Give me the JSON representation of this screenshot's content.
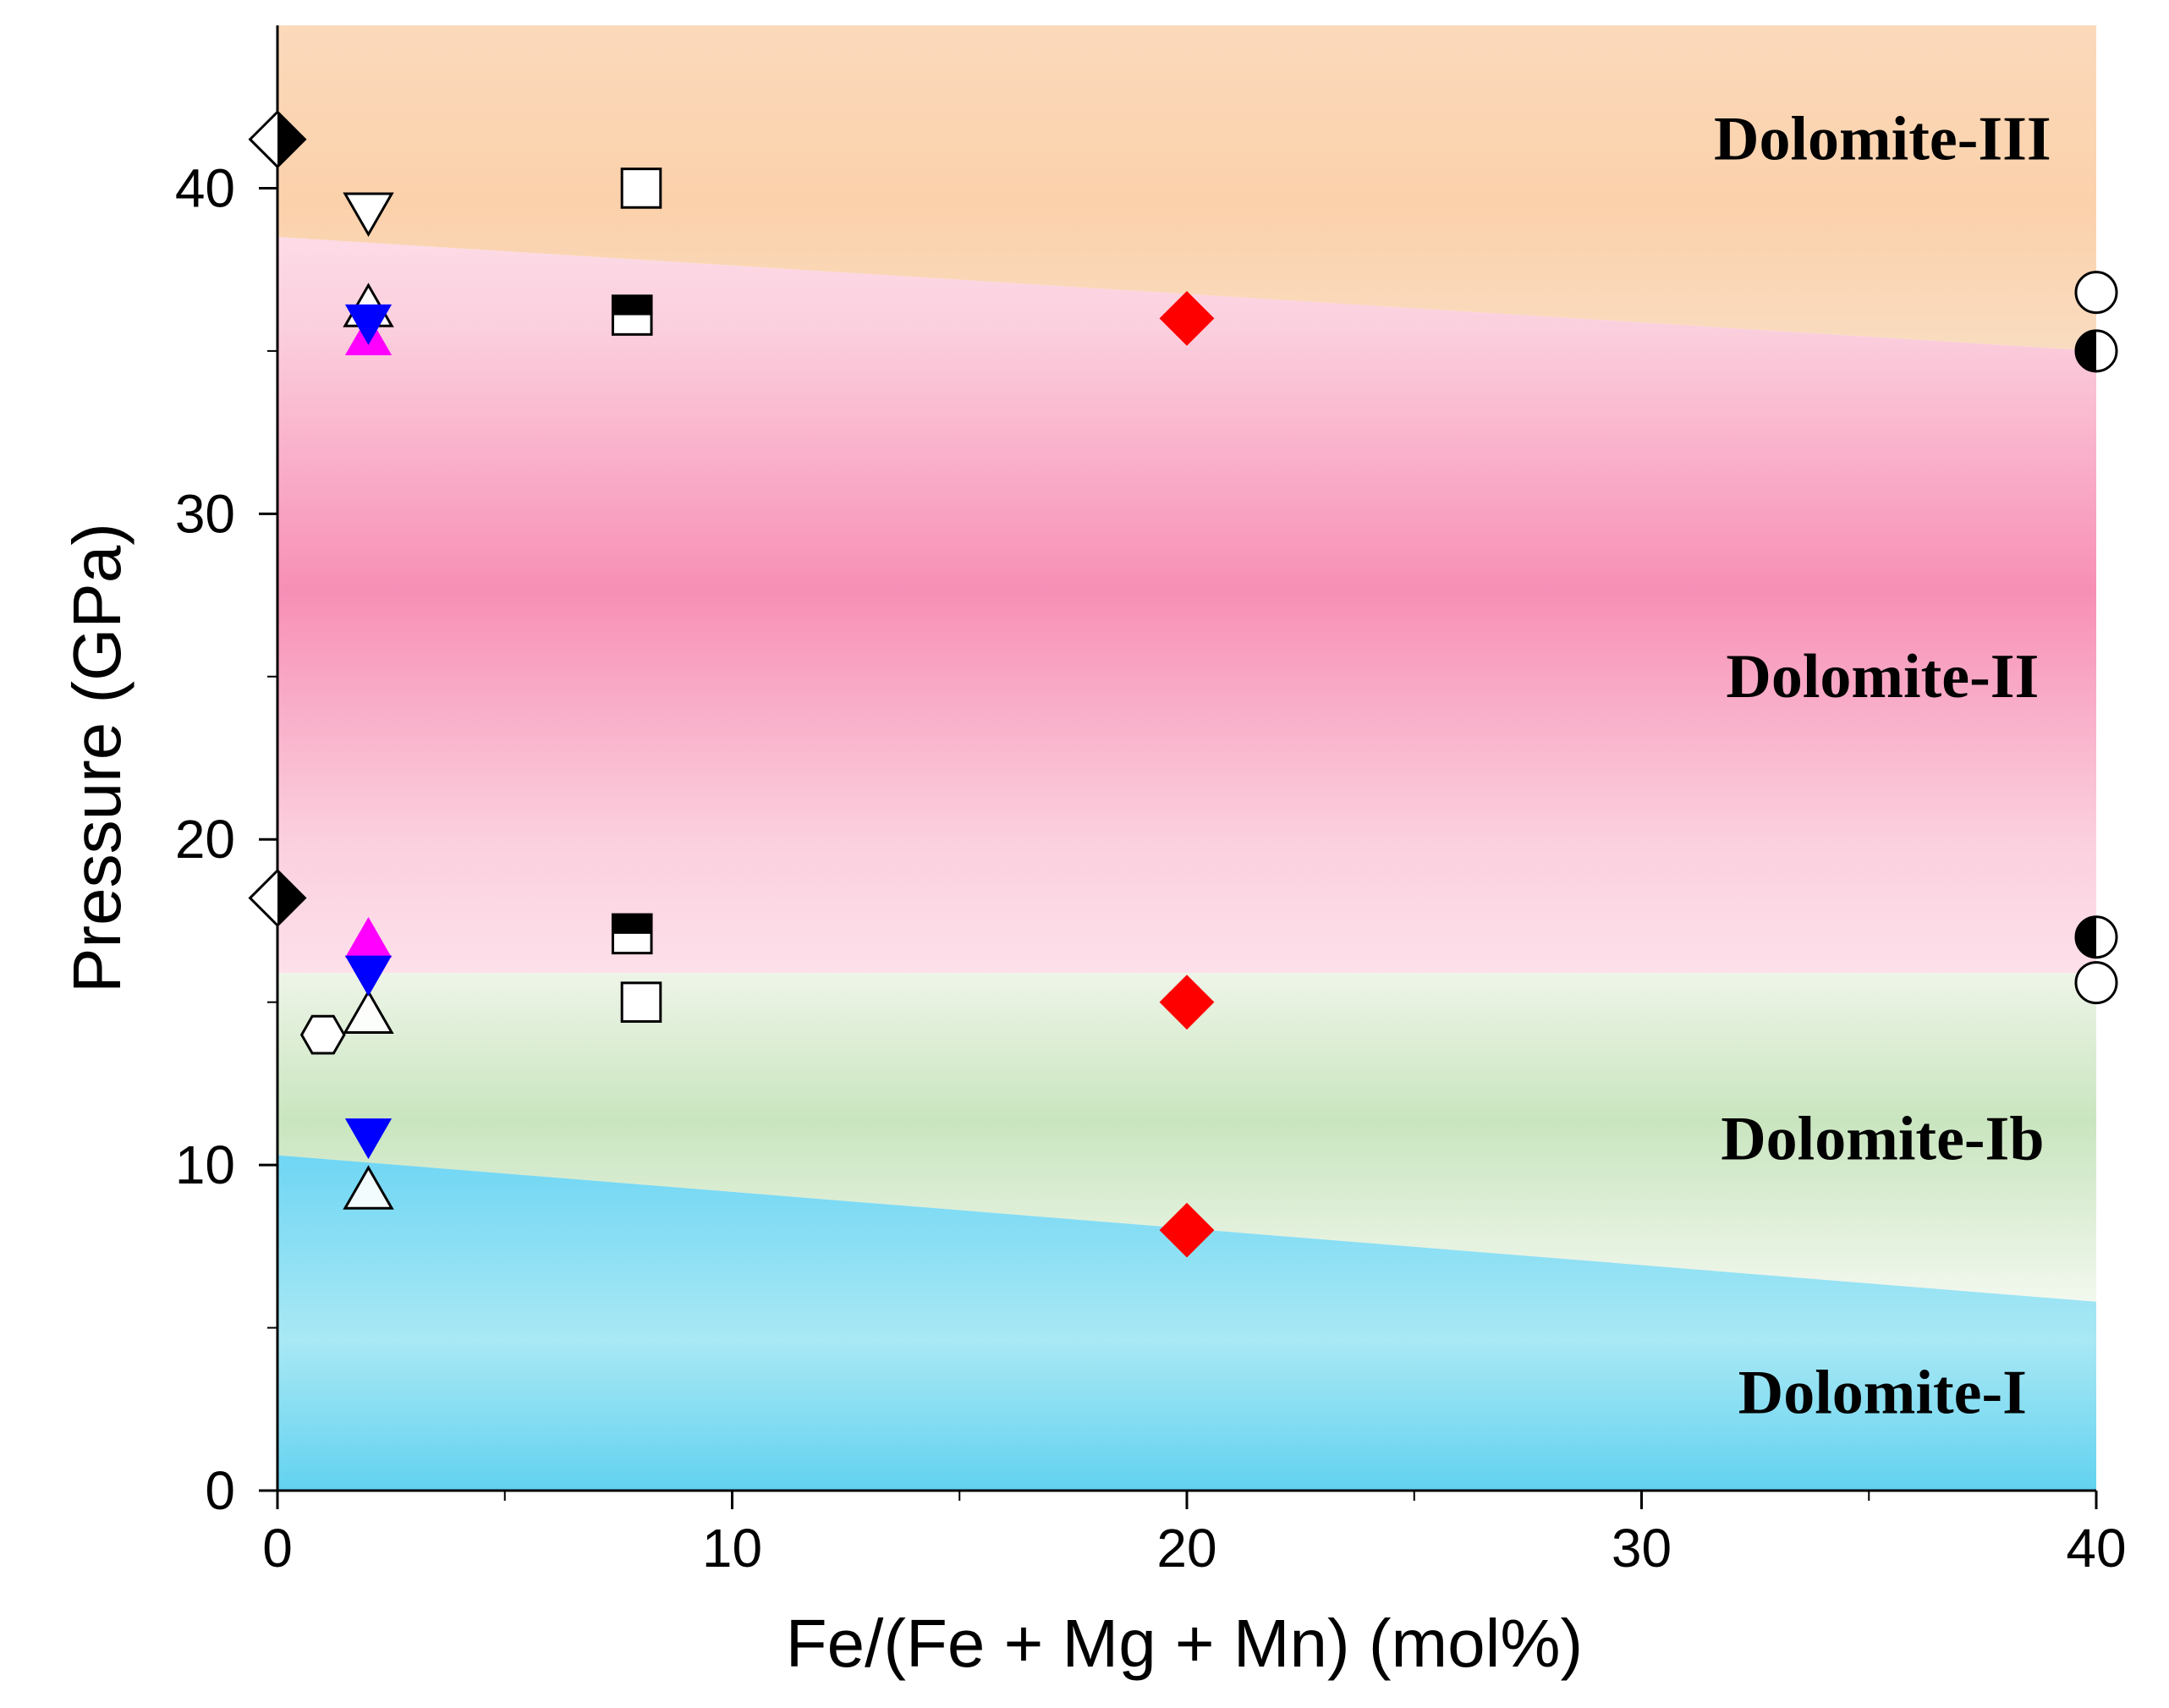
{
  "chart_data": {
    "type": "scatter",
    "title": "",
    "xlabel": "Fe/(Fe + Mg + Mn) (mol%)",
    "ylabel": "Pressure (GPa)",
    "xlim": [
      0,
      40
    ],
    "ylim": [
      0,
      45
    ],
    "x_ticks": [
      0,
      10,
      20,
      30,
      40
    ],
    "y_ticks": [
      0,
      10,
      20,
      30,
      40
    ],
    "x_minor_ticks": [
      5,
      15,
      25,
      35
    ],
    "y_minor_ticks": [
      5,
      15,
      25,
      35
    ],
    "grid": false,
    "phase_regions": [
      {
        "name": "Dolomite-I",
        "label": "Dolomite-I",
        "color": "#6fd8f2",
        "label_at": {
          "x": 35.3,
          "y": 3
        }
      },
      {
        "name": "Dolomite-Ib",
        "label": "Dolomite-Ib",
        "color": "#cbe6c2",
        "label_at": {
          "x": 35.3,
          "y": 10.8
        }
      },
      {
        "name": "Dolomite-II",
        "label": "Dolomite-II",
        "color": "#f795b8",
        "label_at": {
          "x": 35.3,
          "y": 25
        }
      },
      {
        "name": "Dolomite-III",
        "label": "Dolomite-III",
        "color": "#fbd3ad",
        "label_at": {
          "x": 35.3,
          "y": 41.5
        }
      }
    ],
    "boundaries": [
      {
        "name": "I-Ib",
        "points": [
          [
            0,
            10.3
          ],
          [
            40,
            5.8
          ]
        ]
      },
      {
        "name": "Ib-II",
        "points": [
          [
            0,
            15.9
          ],
          [
            40,
            15.9
          ]
        ]
      },
      {
        "name": "II-III",
        "points": [
          [
            0,
            38.5
          ],
          [
            40,
            35.0
          ]
        ]
      }
    ],
    "series": [
      {
        "name": "diamond-half-black",
        "marker": "diamond-half",
        "color": "#000000",
        "points": [
          [
            0,
            41.5
          ],
          [
            0,
            18.2
          ]
        ]
      },
      {
        "name": "triangle-down-open",
        "marker": "triangle-down-open",
        "color": "#000000",
        "points": [
          [
            2,
            39.3
          ]
        ]
      },
      {
        "name": "triangle-up-open",
        "marker": "triangle-up-open",
        "color": "#000000",
        "points": [
          [
            2,
            36.3
          ],
          [
            2,
            14.6
          ],
          [
            2,
            9.2
          ]
        ]
      },
      {
        "name": "triangle-up-magenta",
        "marker": "triangle-up",
        "color": "#ff00ff",
        "points": [
          [
            2,
            35.4
          ],
          [
            2,
            16.9
          ]
        ]
      },
      {
        "name": "triangle-down-blue",
        "marker": "triangle-down",
        "color": "#0000ff",
        "points": [
          [
            2,
            35.9
          ],
          [
            2,
            15.9
          ],
          [
            2,
            10.9
          ]
        ]
      },
      {
        "name": "hexagon-open",
        "marker": "hexagon-open",
        "color": "#000000",
        "points": [
          [
            1,
            14.0
          ]
        ]
      },
      {
        "name": "square-open",
        "marker": "square-open",
        "color": "#000000",
        "points": [
          [
            8,
            40.0
          ],
          [
            8,
            15.0
          ]
        ]
      },
      {
        "name": "square-half-top",
        "marker": "square-half",
        "color": "#000000",
        "points": [
          [
            7.8,
            36.1
          ],
          [
            7.8,
            17.1
          ]
        ]
      },
      {
        "name": "diamond-red",
        "marker": "diamond",
        "color": "#ff0000",
        "points": [
          [
            20,
            36.0
          ],
          [
            20,
            15.0
          ],
          [
            20,
            8.0
          ]
        ]
      },
      {
        "name": "circle-open",
        "marker": "circle-open",
        "color": "#000000",
        "points": [
          [
            40,
            36.8
          ],
          [
            40,
            15.6
          ]
        ]
      },
      {
        "name": "circle-half-left",
        "marker": "circle-half",
        "color": "#000000",
        "points": [
          [
            40,
            35.0
          ],
          [
            40,
            17.0
          ]
        ]
      }
    ]
  }
}
